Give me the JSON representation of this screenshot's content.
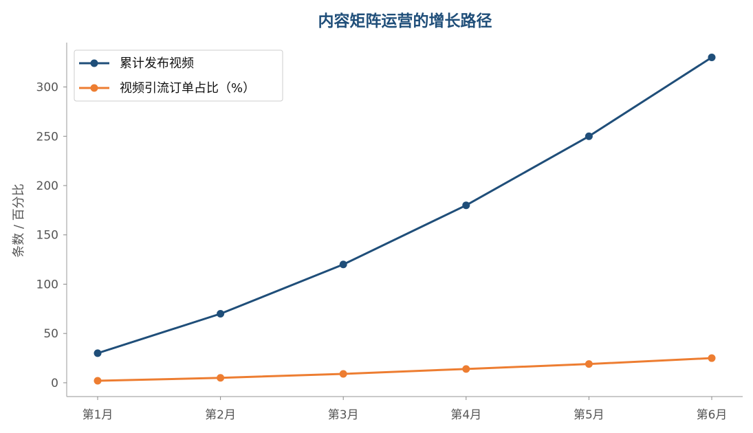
{
  "chart_data": {
    "type": "line",
    "title": "内容矩阵运营的增长路径",
    "xlabel": "",
    "ylabel": "条数 / 百分比",
    "categories": [
      "第1月",
      "第2月",
      "第3月",
      "第4月",
      "第5月",
      "第6月"
    ],
    "series": [
      {
        "name": "累计发布视频",
        "values": [
          30,
          70,
          120,
          180,
          250,
          330
        ],
        "color": "#1f4e79"
      },
      {
        "name": "视频引流订单占比（%）",
        "values": [
          2,
          5,
          9,
          14,
          19,
          25
        ],
        "color": "#ed7d31"
      }
    ],
    "ylim": [
      -14,
      345
    ],
    "yticks": [
      0,
      50,
      100,
      150,
      200,
      250,
      300
    ],
    "grid": false,
    "legend": "top-left",
    "marker": "circle"
  }
}
